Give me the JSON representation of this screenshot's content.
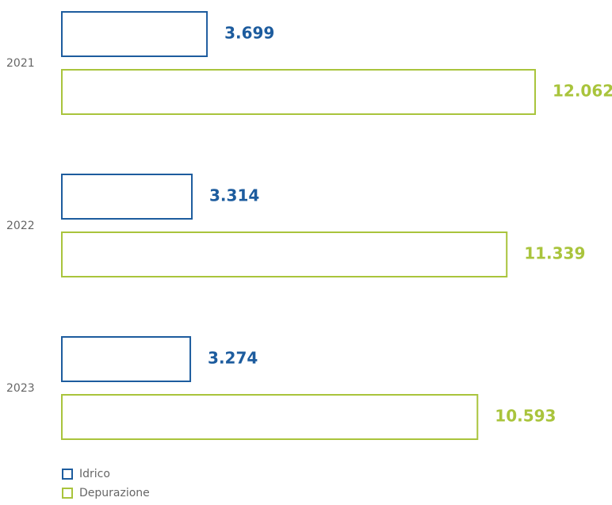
{
  "chart_data": {
    "type": "bar",
    "orientation": "horizontal",
    "categories": [
      "2021",
      "2022",
      "2023"
    ],
    "series": [
      {
        "name": "Idrico",
        "color": "#1d5c9e",
        "values": [
          3699,
          3314,
          3274
        ],
        "value_labels": [
          "3.699",
          "3.314",
          "3.274"
        ]
      },
      {
        "name": "Depurazione",
        "color": "#a9c43c",
        "values": [
          12062,
          11339,
          10593
        ],
        "value_labels": [
          "12.062",
          "11.339",
          "10.593"
        ]
      }
    ]
  }
}
